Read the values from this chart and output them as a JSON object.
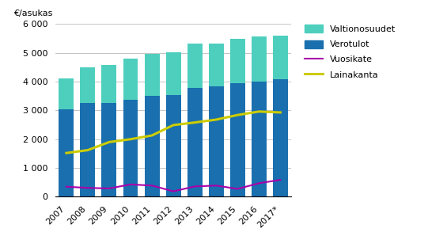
{
  "years": [
    "2007",
    "2008",
    "2009",
    "2010",
    "2011",
    "2012",
    "2013",
    "2014",
    "2015",
    "2016",
    "2017*"
  ],
  "verotulot": [
    3050,
    3250,
    3250,
    3360,
    3510,
    3540,
    3770,
    3840,
    3950,
    4010,
    4080
  ],
  "valtionosuudet": [
    1060,
    1240,
    1340,
    1450,
    1450,
    1490,
    1550,
    1490,
    1530,
    1560,
    1520
  ],
  "vuosikate": [
    350,
    310,
    290,
    430,
    390,
    190,
    360,
    390,
    275,
    470,
    590
  ],
  "lainakanta": [
    1520,
    1620,
    1900,
    2000,
    2130,
    2490,
    2580,
    2680,
    2840,
    2960,
    2930
  ],
  "bar_color_verotulot": "#1A6FAF",
  "bar_color_valtionosuudet": "#4ECFBE",
  "line_color_vuosikate": "#AA00AA",
  "line_color_lainakanta": "#CCCC00",
  "ylim": [
    0,
    6000
  ],
  "yticks": [
    0,
    1000,
    2000,
    3000,
    4000,
    5000,
    6000
  ],
  "ylabel": "€/asukas",
  "legend_labels": [
    "Valtionosuudet",
    "Verotulot",
    "Vuosikate",
    "Lainakanta"
  ],
  "background_color": "#ffffff",
  "grid_color": "#bbbbbb"
}
